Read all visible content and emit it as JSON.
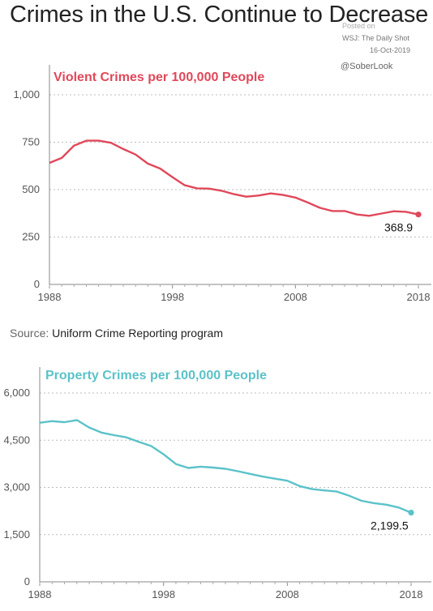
{
  "page": {
    "title": "Crimes in the U.S. Continue to Decrease",
    "credit_posted": "Posted on",
    "credit_source": "WSJ: The Daily Shot",
    "credit_date": "16-Oct-2019",
    "credit_handle": "@SoberLook",
    "source_label": "Source:",
    "source_text": "Uniform Crime Reporting program"
  },
  "chart_data": [
    {
      "type": "line",
      "title": "Violent Crimes per 100,000 People",
      "color": "#e0485a",
      "xlabel": "",
      "ylabel": "",
      "xlim": [
        1988,
        2018
      ],
      "ylim": [
        0,
        1000
      ],
      "xticks": [
        "1988",
        "1998",
        "2008",
        "2018"
      ],
      "yticks": [
        "0",
        "250",
        "500",
        "750",
        "1,000"
      ],
      "grid": "horizontal-dotted",
      "series": [
        {
          "x": [
            1988,
            1989,
            1990,
            1991,
            1992,
            1993,
            1994,
            1995,
            1996,
            1997,
            1998,
            1999,
            2000,
            2001,
            2002,
            2003,
            2004,
            2005,
            2006,
            2007,
            2008,
            2009,
            2010,
            2011,
            2012,
            2013,
            2014,
            2015,
            2016,
            2017,
            2018
          ],
          "values": [
            641,
            667,
            732,
            758,
            758,
            747,
            714,
            685,
            637,
            611,
            566,
            523,
            507,
            505,
            494,
            476,
            463,
            469,
            480,
            472,
            458,
            432,
            404,
            387,
            387,
            369,
            362,
            374,
            386,
            383,
            368.9
          ]
        }
      ],
      "end_label": "368.9"
    },
    {
      "type": "line",
      "title": "Property Crimes per 100,000 People",
      "color": "#5bc2c9",
      "xlabel": "",
      "ylabel": "",
      "xlim": [
        1988,
        2018
      ],
      "ylim": [
        0,
        6000
      ],
      "xticks": [
        "1988",
        "1998",
        "2008",
        "2018"
      ],
      "yticks": [
        "0",
        "1,500",
        "3,000",
        "4,500",
        "6,000"
      ],
      "grid": "horizontal-dotted",
      "series": [
        {
          "x": [
            1988,
            1989,
            1990,
            1991,
            1992,
            1993,
            1994,
            1995,
            1996,
            1997,
            1998,
            1999,
            2000,
            2001,
            2002,
            2003,
            2004,
            2005,
            2006,
            2007,
            2008,
            2009,
            2010,
            2011,
            2012,
            2013,
            2014,
            2015,
            2016,
            2017,
            2018
          ],
          "values": [
            5054,
            5107,
            5073,
            5140,
            4903,
            4740,
            4660,
            4591,
            4451,
            4316,
            4053,
            3744,
            3618,
            3658,
            3631,
            3592,
            3514,
            3431,
            3346,
            3277,
            3215,
            3041,
            2946,
            2905,
            2868,
            2734,
            2574,
            2500,
            2451,
            2362,
            2199.5
          ]
        }
      ],
      "end_label": "2,199.5"
    }
  ]
}
